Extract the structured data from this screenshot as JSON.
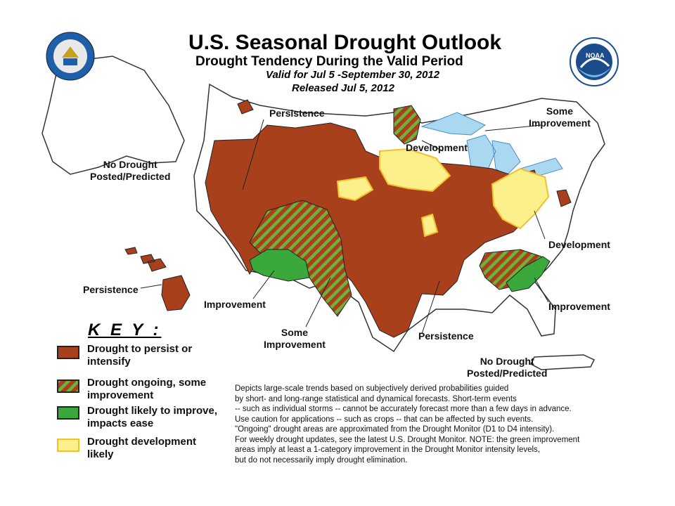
{
  "header": {
    "title": "U.S. Seasonal Drought Outlook",
    "subtitle": "Drought Tendency During the Valid Period",
    "valid": "Valid for Jul 5 -September 30, 2012",
    "released": "Released Jul 5, 2012"
  },
  "logos": {
    "commerce": "department-of-commerce-seal",
    "noaa": "noaa-logo",
    "noaa_text": "NOAA"
  },
  "colors": {
    "persist": "#a8401c",
    "improve_some": "#6fb13a",
    "improve": "#3aa83a",
    "develop": "#fbf08a",
    "develop_border": "#f2c02a",
    "water": "#a9d8f0",
    "border": "#333333"
  },
  "map_labels": {
    "persistence_nw": "Persistence",
    "some_improvement_ne_1": "Some",
    "some_improvement_ne_2": "Improvement",
    "development_n": "Development",
    "no_drought_ak_1": "No Drought",
    "no_drought_ak_2": "Posted/Predicted",
    "development_e": "Development",
    "persistence_hi": "Persistence",
    "improvement_sw": "Improvement",
    "improvement_se": "Improvement",
    "some_improvement_s_1": "Some",
    "some_improvement_s_2": "Improvement",
    "persistence_s": "Persistence",
    "no_drought_pr_1": "No Drought",
    "no_drought_pr_2": "Posted/Predicted"
  },
  "key": {
    "title": "K E Y :",
    "items": [
      {
        "line1": "Drought to persist or",
        "line2": "intensify"
      },
      {
        "line1": "Drought ongoing, some",
        "line2": "improvement"
      },
      {
        "line1": "Drought likely to improve,",
        "line2": "impacts ease"
      },
      {
        "line1": "Drought development",
        "line2": "likely"
      }
    ]
  },
  "notes": [
    "Depicts large-scale trends based on subjectively derived probabilities guided",
    "by short- and long-range statistical and dynamical forecasts. Short-term events",
    "-- such as individual storms -- cannot be accurately forecast more than a few days in advance.",
    "Use caution for applications -- such as crops -- that can be affected by such events.",
    "\"Ongoing\" drought areas are approximated from the Drought Monitor (D1 to D4 intensity).",
    "For weekly drought updates, see the latest U.S. Drought Monitor. NOTE: the green improvement",
    "areas imply at least a 1-category improvement in the Drought Monitor intensity levels,",
    "but do not necessarily imply drought elimination."
  ]
}
